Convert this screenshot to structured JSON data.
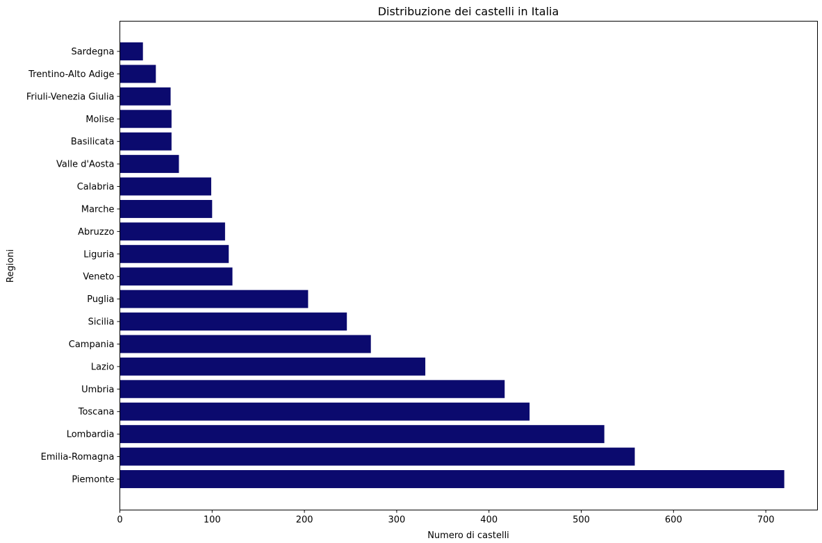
{
  "chart_data": {
    "type": "bar",
    "orientation": "horizontal",
    "title": "Distribuzione dei castelli in Italia",
    "xlabel": "Numero di castelli",
    "ylabel": "Regioni",
    "xlim": [
      0,
      756
    ],
    "xticks": [
      0,
      100,
      200,
      300,
      400,
      500,
      600,
      700
    ],
    "categories": [
      "Piemonte",
      "Emilia-Romagna",
      "Lombardia",
      "Toscana",
      "Umbria",
      "Lazio",
      "Campania",
      "Sicilia",
      "Puglia",
      "Veneto",
      "Liguria",
      "Abruzzo",
      "Marche",
      "Calabria",
      "Valle d'Aosta",
      "Basilicata",
      "Molise",
      "Friuli-Venezia Giulia",
      "Trentino-Alto Adige",
      "Sardegna"
    ],
    "values": [
      720,
      558,
      525,
      444,
      417,
      331,
      272,
      246,
      204,
      122,
      118,
      114,
      100,
      99,
      64,
      56,
      56,
      55,
      39,
      25
    ],
    "color": "#0b0a6e",
    "grid": false,
    "legend": false
  }
}
